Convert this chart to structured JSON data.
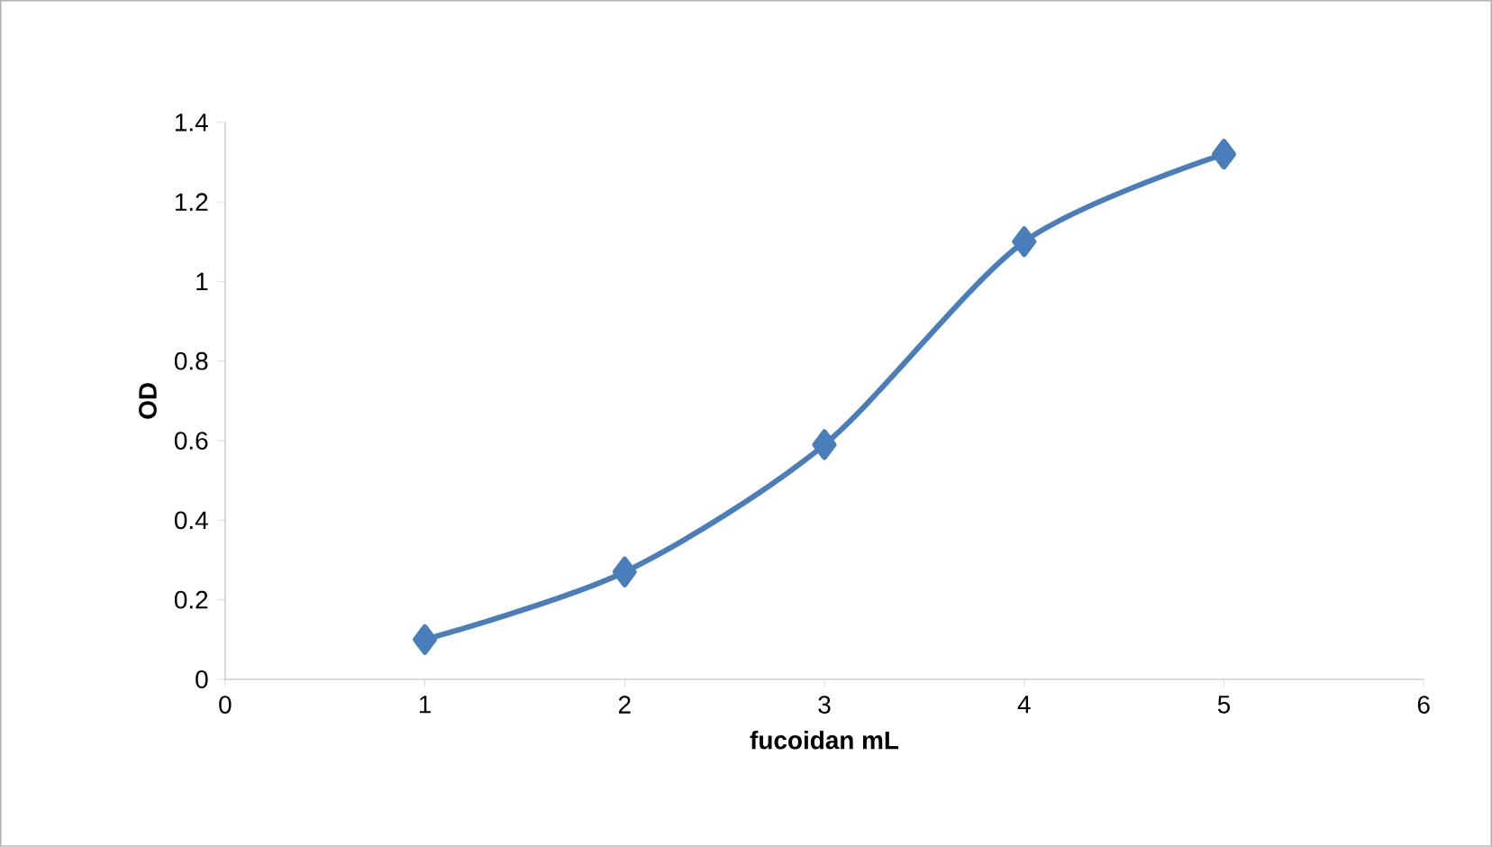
{
  "chart_data": {
    "type": "line",
    "xlabel": "fucoidan  mL",
    "ylabel": "OD",
    "x": [
      1,
      2,
      3,
      4,
      5
    ],
    "values": [
      0.1,
      0.27,
      0.59,
      1.1,
      1.32
    ],
    "color": "#4a7ebb",
    "marker": "diamond",
    "line_style": "solid",
    "xlim": [
      0,
      6
    ],
    "ylim": [
      0,
      1.4
    ],
    "xticks": [
      0,
      1,
      2,
      3,
      4,
      5,
      6
    ],
    "yticks": [
      0,
      0.2,
      0.4,
      0.6,
      0.8,
      1,
      1.2,
      1.4
    ]
  }
}
